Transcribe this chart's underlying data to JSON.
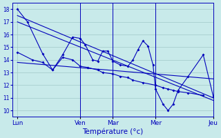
{
  "background_color": "#c8eaea",
  "grid_color": "#a0c8c8",
  "line_color": "#0000bb",
  "title": "Température (°c)",
  "ylim": [
    9.5,
    18.5
  ],
  "yticks": [
    10,
    11,
    12,
    13,
    14,
    15,
    16,
    17,
    18
  ],
  "xlim": [
    0,
    40
  ],
  "vline_positions": [
    13.5,
    20,
    28.5,
    40
  ],
  "x_tick_positions": [
    1,
    13.5,
    20,
    28.5,
    40
  ],
  "x_tick_labels": [
    "Lun",
    "Ven",
    "Mar",
    "Mer",
    "Jeu"
  ],
  "line1_x": [
    1,
    3,
    6,
    8,
    10,
    12,
    13.5,
    14.5,
    16,
    17,
    18,
    19,
    20,
    21.5,
    23,
    24,
    25,
    26,
    27,
    28,
    28.5,
    30,
    31,
    32,
    33,
    35,
    38,
    40
  ],
  "line1_y": [
    18,
    17,
    14.5,
    13.2,
    14.4,
    15.8,
    15.7,
    15.2,
    14.0,
    13.9,
    14.7,
    14.7,
    13.9,
    13.6,
    13.5,
    14.0,
    14.8,
    15.5,
    15.1,
    13.6,
    11.7,
    10.5,
    10.0,
    10.5,
    11.6,
    12.7,
    14.4,
    11.1
  ],
  "line2_x": [
    1,
    4,
    6,
    8,
    10,
    12,
    13.5,
    15,
    17,
    18,
    20,
    21.5,
    23,
    24,
    26,
    28.5,
    30,
    31,
    32,
    33,
    35,
    38
  ],
  "line2_y": [
    14.6,
    14.0,
    13.8,
    13.2,
    14.2,
    14.0,
    13.5,
    13.4,
    13.2,
    13.0,
    12.9,
    12.7,
    12.6,
    12.4,
    12.2,
    12.0,
    11.8,
    11.7,
    11.6,
    11.5,
    11.4,
    11.2
  ],
  "trend1_x": [
    1,
    40
  ],
  "trend1_y": [
    17.5,
    11.0
  ],
  "trend2_x": [
    1,
    40
  ],
  "trend2_y": [
    17.0,
    10.8
  ],
  "trend3_x": [
    1,
    40
  ],
  "trend3_y": [
    13.8,
    12.5
  ]
}
